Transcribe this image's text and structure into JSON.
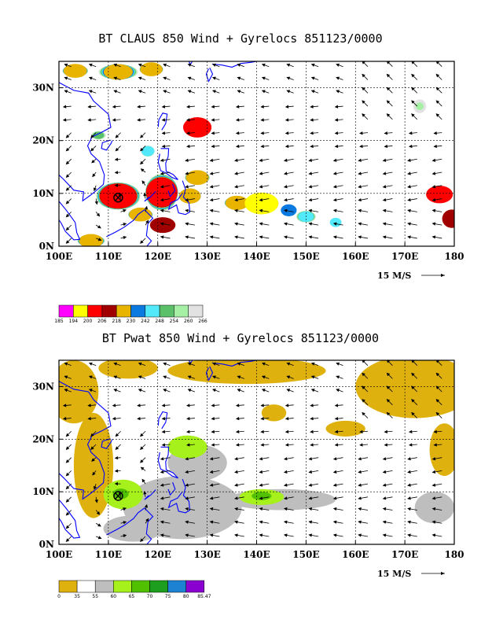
{
  "panels": [
    {
      "title": "BT CLAUS 850 Wind + Gyrelocs 851123/0000",
      "colorbar": {
        "colors": [
          "#ff00ff",
          "#ffff00",
          "#ff0000",
          "#a00000",
          "#e8b400",
          "#0a7ae0",
          "#52eafa",
          "#5ac06a",
          "#a6f0a6",
          "#e2e2e2"
        ],
        "labels": [
          "185",
          "194",
          "200",
          "206",
          "218",
          "230",
          "242",
          "248",
          "254",
          "260",
          "266"
        ]
      }
    },
    {
      "title": "BT Pwat 850 Wind + Gyrelocs 851123/0000",
      "colorbar": {
        "colors": [
          "#deb10e",
          "#ffffff",
          "#bebebe",
          "#a6f01c",
          "#50c000",
          "#1e9e1e",
          "#1e82d2",
          "#8a00d0"
        ],
        "labels": [
          "0",
          "35",
          "55",
          "60",
          "65",
          "70",
          "75",
          "80",
          "85.47"
        ]
      }
    }
  ],
  "axes": {
    "x_ticks": [
      "100E",
      "110E",
      "120E",
      "130E",
      "140E",
      "150E",
      "160E",
      "170E",
      "180"
    ],
    "y_ticks": [
      "0N",
      "10N",
      "20N",
      "30N"
    ]
  },
  "vector_scale": "15 M/S",
  "gyre_location": {
    "lon": 112,
    "lat": 9.2
  },
  "colors": {
    "coastline": "#0000ff",
    "frame": "#000000"
  }
}
